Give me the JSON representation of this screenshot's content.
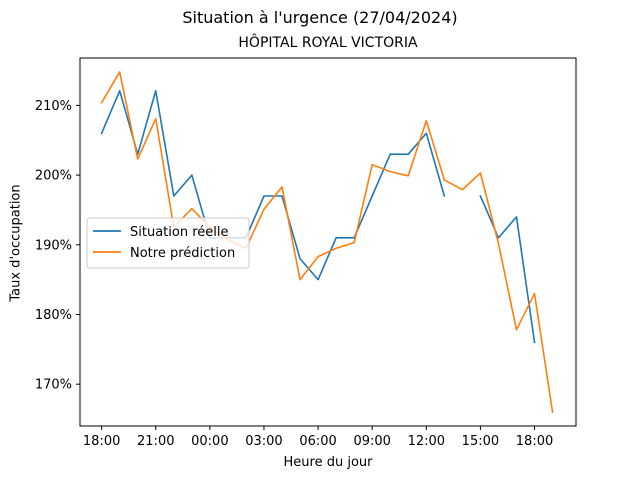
{
  "chart_data": {
    "type": "line",
    "suptitle": "Situation à l'urgence (27/04/2024)",
    "title": "HÔPITAL ROYAL VICTORIA",
    "xlabel": "Heure du jour",
    "ylabel": "Taux d'occupation",
    "x_ticks": [
      "18:00",
      "21:00",
      "00:00",
      "03:00",
      "06:00",
      "09:00",
      "12:00",
      "15:00",
      "18:00"
    ],
    "x_tick_hours": [
      0,
      3,
      6,
      9,
      12,
      15,
      18,
      21,
      24
    ],
    "x_hours": [
      0,
      1,
      2,
      3,
      4,
      5,
      6,
      7,
      8,
      9,
      10,
      11,
      12,
      13,
      14,
      15,
      16,
      17,
      18,
      19,
      20,
      21,
      22,
      23,
      24,
      25
    ],
    "y_ticks": [
      "170%",
      "180%",
      "190%",
      "200%",
      "210%"
    ],
    "y_tick_values": [
      170,
      180,
      190,
      200,
      210
    ],
    "xlim": [
      -1.2,
      26.3
    ],
    "ylim": [
      164.0,
      216.8
    ],
    "legend_position": "center-left",
    "grid": false,
    "series": [
      {
        "name": "Situation réelle",
        "color": "#1f77b4",
        "values": [
          206.0,
          212.1,
          203.0,
          212.1,
          197.0,
          200.0,
          191.0,
          191.0,
          191.0,
          197.0,
          197.0,
          188.0,
          185.0,
          191.0,
          191.0,
          197.0,
          203.0,
          203.0,
          206.0,
          197.0,
          null,
          197.0,
          191.0,
          194.0,
          176.0,
          null
        ]
      },
      {
        "name": "Notre prédiction",
        "color": "#ff7f0e",
        "values": [
          210.4,
          214.8,
          202.3,
          208.1,
          192.5,
          195.2,
          192.5,
          190.7,
          189.5,
          195.1,
          198.3,
          185.0,
          188.3,
          189.5,
          190.3,
          201.5,
          200.5,
          199.9,
          207.8,
          199.3,
          197.9,
          200.3,
          190.2,
          177.8,
          183.0,
          166.0
        ]
      }
    ]
  }
}
